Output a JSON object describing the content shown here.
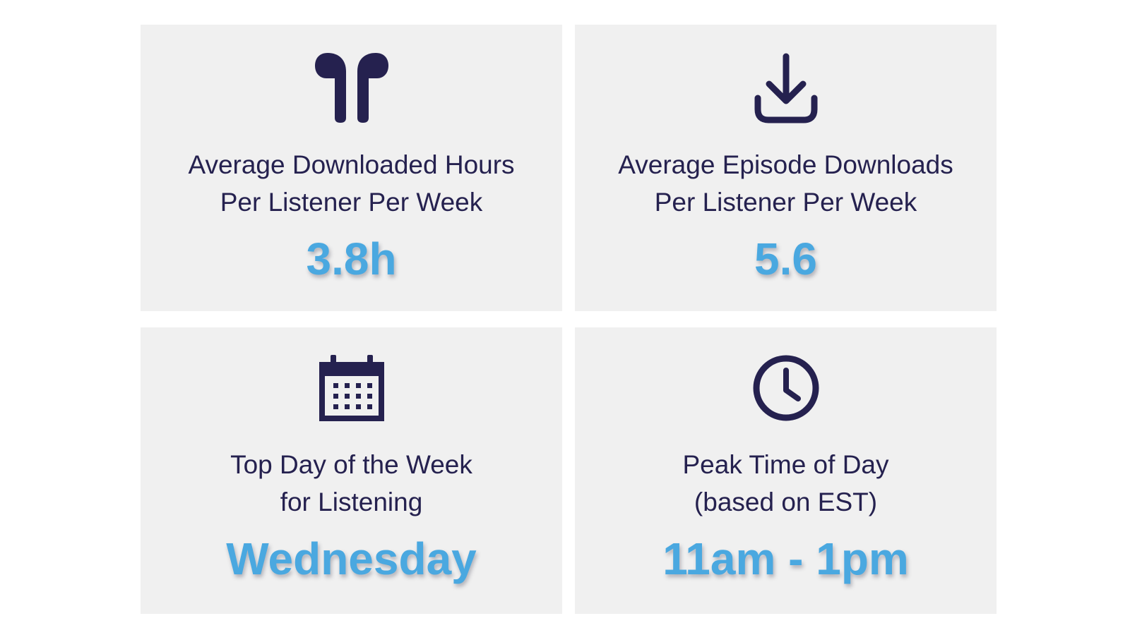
{
  "cards": [
    {
      "icon": "earbuds-icon",
      "label_line1": "Average Downloaded Hours",
      "label_line2": "Per Listener Per Week",
      "value": "3.8h"
    },
    {
      "icon": "download-icon",
      "label_line1": "Average Episode Downloads",
      "label_line2": "Per Listener Per Week",
      "value": "5.6"
    },
    {
      "icon": "calendar-icon",
      "label_line1": "Top Day of the Week",
      "label_line2": "for Listening",
      "value": "Wednesday"
    },
    {
      "icon": "clock-icon",
      "label_line1": "Peak Time of Day",
      "label_line2": "(based on EST)",
      "value": "11am - 1pm"
    }
  ],
  "colors": {
    "card_background": "#f0f0f0",
    "label_text": "#25214f",
    "value_text": "#4aa8e0",
    "icon": "#25214f"
  }
}
